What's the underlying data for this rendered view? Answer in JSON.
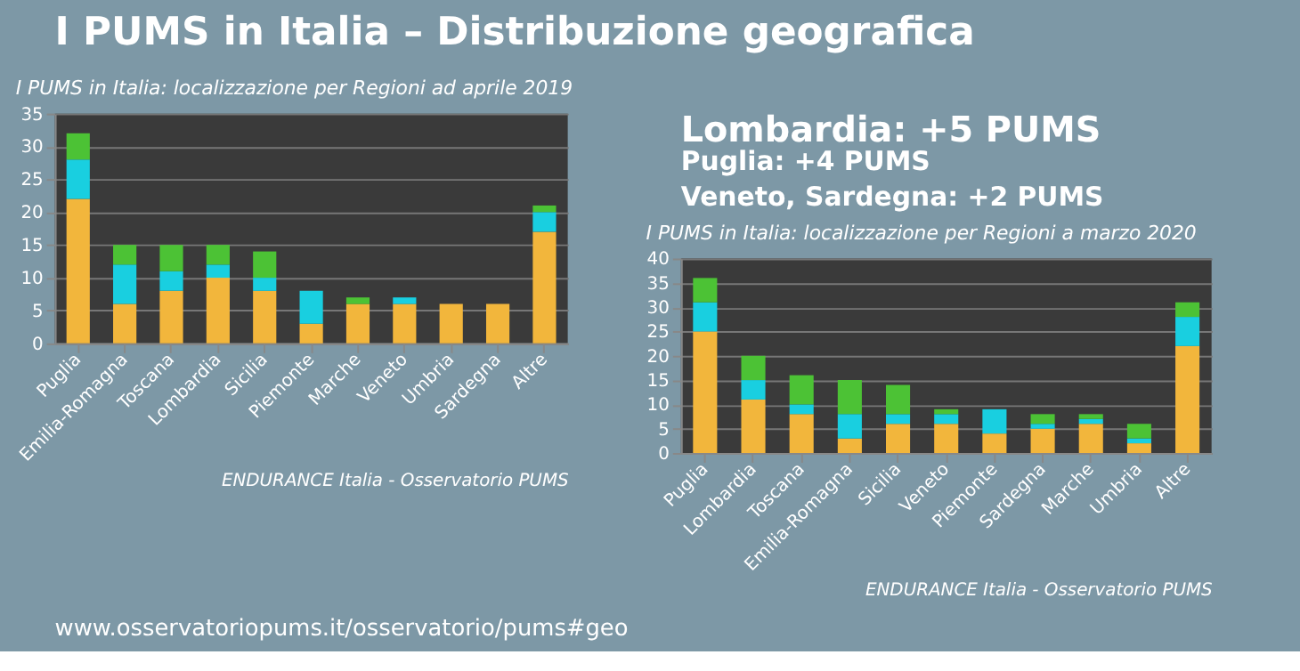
{
  "chart_data": [
    {
      "type": "bar",
      "stacked": true,
      "title": "I PUMS in Italia: localizzazione per Regioni ad aprile 2019",
      "categories": [
        "Puglia",
        "Emilia-Romagna",
        "Toscana",
        "Lombardia",
        "Sicilia",
        "Piemonte",
        "Marche",
        "Veneto",
        "Umbria",
        "Sardegna",
        "Altre"
      ],
      "series": [
        {
          "color": "#f2b63c",
          "values": [
            22,
            6,
            8,
            10,
            8,
            3,
            6,
            6,
            6,
            6,
            17
          ]
        },
        {
          "color": "#19cfe0",
          "values": [
            6,
            6,
            3,
            2,
            2,
            5,
            0,
            1,
            0,
            0,
            3
          ]
        },
        {
          "color": "#4cc235",
          "values": [
            4,
            3,
            4,
            3,
            4,
            0,
            1,
            0,
            0,
            0,
            1
          ]
        }
      ],
      "ylim": [
        0,
        35
      ],
      "yticks": [
        0,
        5,
        10,
        15,
        20,
        25,
        30,
        35
      ],
      "grid": "y",
      "annotations": [
        "ENDURANCE Italia - Osservatorio PUMS",
        "I PUMS in Italia – Distribuzione geografica",
        "www.osservatoriopums.it/osservatorio/pums#geo"
      ]
    },
    {
      "type": "bar",
      "stacked": true,
      "title": "I PUMS in Italia: localizzazione per Regioni a marzo 2020",
      "categories": [
        "Puglia",
        "Lombardia",
        "Toscana",
        "Emilia-Romagna",
        "Sicilia",
        "Veneto",
        "Piemonte",
        "Sardegna",
        "Marche",
        "Umbria",
        "Altre"
      ],
      "series": [
        {
          "color": "#f2b63c",
          "values": [
            25,
            11,
            8,
            3,
            6,
            6,
            4,
            5,
            6,
            2,
            22
          ]
        },
        {
          "color": "#19cfe0",
          "values": [
            6,
            4,
            2,
            5,
            2,
            2,
            5,
            1,
            1,
            1,
            6
          ]
        },
        {
          "color": "#4cc235",
          "values": [
            5,
            5,
            6,
            7,
            6,
            1,
            0,
            2,
            1,
            3,
            3
          ]
        }
      ],
      "ylim": [
        0,
        40
      ],
      "yticks": [
        0,
        5,
        10,
        15,
        20,
        25,
        30,
        35,
        40
      ],
      "grid": "y",
      "annotations": [
        "ENDURANCE Italia - Osservatorio PUMS",
        "Lombardia: +5 PUMS",
        "Puglia: +4 PUMS",
        "Veneto, Sardegna: +2 PUMS"
      ]
    }
  ]
}
